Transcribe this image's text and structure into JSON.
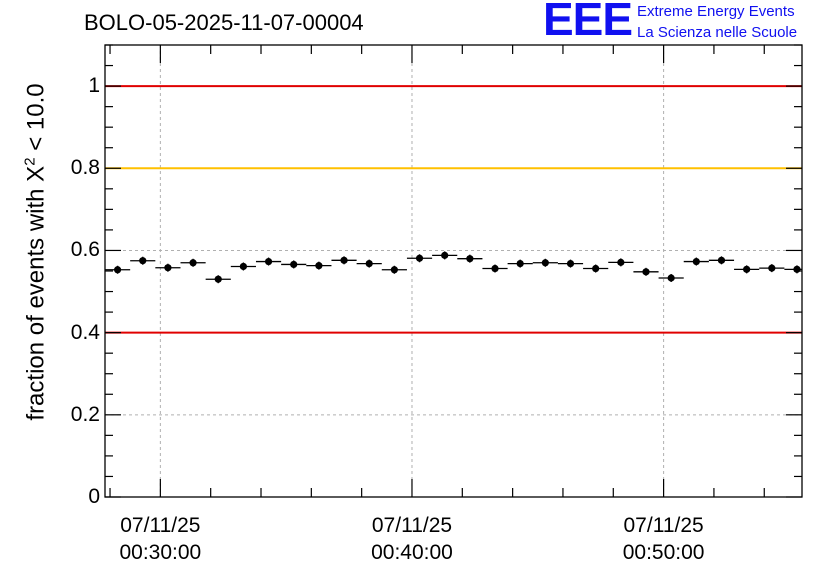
{
  "chart_data": {
    "type": "scatter",
    "title": "BOLO-05-2025-11-07-00004",
    "ylabel": {
      "prefix": "fraction of events with X",
      "superscript": "2",
      "suffix": " < 10.0"
    },
    "ylim": [
      0,
      1.1
    ],
    "y_ticks": [
      {
        "value": 0,
        "label": "0"
      },
      {
        "value": 0.2,
        "label": "0.2"
      },
      {
        "value": 0.4,
        "label": "0.4"
      },
      {
        "value": 0.6,
        "label": "0.6"
      },
      {
        "value": 0.8,
        "label": "0.8"
      },
      {
        "value": 1,
        "label": "1"
      }
    ],
    "x_unit": "minutes",
    "xlim": [
      27.8,
      55.5
    ],
    "x_ticks": [
      {
        "value": 30,
        "date": "07/11/25",
        "time": "00:30:00"
      },
      {
        "value": 40,
        "date": "07/11/25",
        "time": "00:40:00"
      },
      {
        "value": 50,
        "date": "07/11/25",
        "time": "00:50:00"
      }
    ],
    "reference_lines": [
      {
        "value": 1.0,
        "color": "#e00000"
      },
      {
        "value": 0.8,
        "color": "#ffc000"
      },
      {
        "value": 0.4,
        "color": "#e00000"
      }
    ],
    "bin_width": 1,
    "series": [
      {
        "name": "fraction",
        "x": [
          28.3,
          29.3,
          30.3,
          31.3,
          32.3,
          33.3,
          34.3,
          35.3,
          36.3,
          37.3,
          38.3,
          39.3,
          40.3,
          41.3,
          42.3,
          43.3,
          44.3,
          45.3,
          46.3,
          47.3,
          48.3,
          49.3,
          50.3,
          51.3,
          52.3,
          53.3,
          54.3,
          55.3
        ],
        "y": [
          0.553,
          0.575,
          0.558,
          0.57,
          0.53,
          0.561,
          0.573,
          0.566,
          0.563,
          0.576,
          0.568,
          0.553,
          0.581,
          0.588,
          0.58,
          0.556,
          0.568,
          0.57,
          0.568,
          0.556,
          0.571,
          0.548,
          0.533,
          0.573,
          0.576,
          0.554,
          0.557,
          0.554
        ]
      }
    ]
  },
  "logo": {
    "mark": "EEE",
    "line1": "Extreme Energy Events",
    "line2": "La Scienza nelle Scuole",
    "color": "#1010f0"
  }
}
